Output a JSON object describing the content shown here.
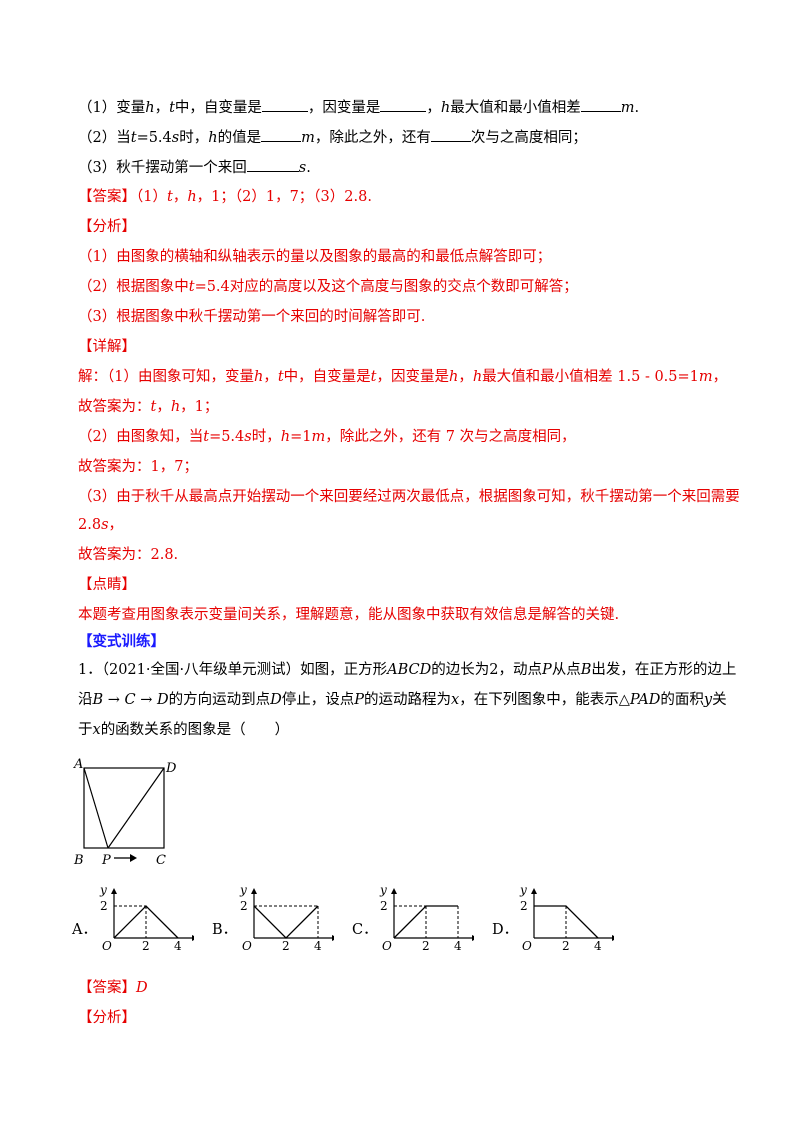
{
  "q": {
    "l1": {
      "a": "（1）变量",
      "h": "h",
      "b": "，",
      "t": "t",
      "c": "中，自变量是",
      "d": "，因变量是",
      "h2": "h",
      "e": "最大值和最小值相差",
      "m": "m",
      "f": "."
    },
    "l2": {
      "a": "（2）当",
      "t": "t",
      "b": "=5.4",
      "s": "s",
      "c": "时，",
      "h": "h",
      "d": "的值是",
      "m": "m",
      "e": "，除此之外，还有",
      "f": "次与之高度相同；"
    },
    "l3": {
      "a": "（3）秋千摆动第一个来回",
      "s": "s",
      "b": "."
    }
  },
  "answer": {
    "label": "【答案】",
    "text": "（1）",
    "t": "t",
    "c1": "，",
    "h": "h",
    "rest": "，1；（2）1，7；（3）2.8."
  },
  "analysis": {
    "label": "【分析】",
    "l1": "（1）由图象的横轴和纵轴表示的量以及图象的最高的和最低点解答即可；",
    "l2a": "（2）根据图象中",
    "l2t": "t",
    "l2b": "=5.4对应的高度以及这个高度与图象的交点个数即可解答；",
    "l3": "（3）根据图象中秋千摆动第一个来回的时间解答即可."
  },
  "detail": {
    "label": "【详解】",
    "l1a": "解：（1）由图象可知，变量",
    "l1h": "h",
    "l1b": "，",
    "l1t": "t",
    "l1c": "中，自变量是",
    "l1t2": "t",
    "l1d": "，因变量是",
    "l1h2": "h",
    "l1e": "，",
    "l1h3": "h",
    "l1f": "最大值和最小值相差 1.5 - 0.5=1",
    "l1m": "m",
    "l1g": "，",
    "l2a": "故答案为：",
    "l2t": "t",
    "l2b": "，",
    "l2h": "h",
    "l2c": "，1；",
    "l3a": "（2）由图象知，当",
    "l3t": "t",
    "l3b": "=5.4",
    "l3s": "s",
    "l3c": "时，",
    "l3h": "h",
    "l3d": "=1",
    "l3m": "m",
    "l3e": "，除此之外，还有 7 次与之高度相同，",
    "l4": "故答案为：1，7；",
    "l5": "（3）由于秋千从最高点开始摆动一个来回要经过两次最低点，根据图象可知，秋千摆动第一个来回需要",
    "l6a": "2.8",
    "l6s": "s",
    "l6b": "，",
    "l7": "故答案为：2.8."
  },
  "comment": {
    "label": "【点睛】",
    "text": "本题考查用图象表示变量间关系，理解题意，能从图象中获取有效信息是解答的关键."
  },
  "variant": {
    "label": "【变式训练】"
  },
  "problem": {
    "l1a": "1．（2021·全国·八年级单元测试）如图，正方形",
    "abcd": "ABCD",
    "l1b": "的边长为2，动点",
    "p": "P",
    "l1c": "从点",
    "b": "B",
    "l1d": "出发，在正方形的边上",
    "l2a": "沿",
    "path": "B → C → D",
    "l2b": "的方向运动到点",
    "d": "D",
    "l2c": "停止，设点",
    "p2": "P",
    "l2d": "的运动路程为",
    "x": "x",
    "l2e": "，在下列图象中，能表示",
    "tri": "△PAD",
    "l2f": "的面积",
    "y": "y",
    "l2g": "关",
    "l3a": "于",
    "x2": "x",
    "l3b": "的函数关系的图象是（　　）"
  },
  "figure": {
    "A": "A",
    "D": "D",
    "B": "B",
    "P": "P",
    "C": "C"
  },
  "options": [
    {
      "letter": "A．",
      "y": "y",
      "x": "x",
      "o": "O",
      "two": "2",
      "tx2": "2",
      "tx4": "4"
    },
    {
      "letter": "B．",
      "y": "y",
      "x": "x",
      "o": "O",
      "two": "2",
      "tx2": "2",
      "tx4": "4"
    },
    {
      "letter": "C．",
      "y": "y",
      "x": "x",
      "o": "O",
      "two": "2",
      "tx2": "2",
      "tx4": "4"
    },
    {
      "letter": "D．",
      "y": "y",
      "x": "x",
      "o": "O",
      "two": "2",
      "tx2": "2",
      "tx4": "4"
    }
  ],
  "answer2": {
    "label": "【答案】",
    "value": "D"
  },
  "analysis2": {
    "label": "【分析】"
  },
  "colors": {
    "red": "#e60000",
    "blue": "#1a1aff"
  }
}
